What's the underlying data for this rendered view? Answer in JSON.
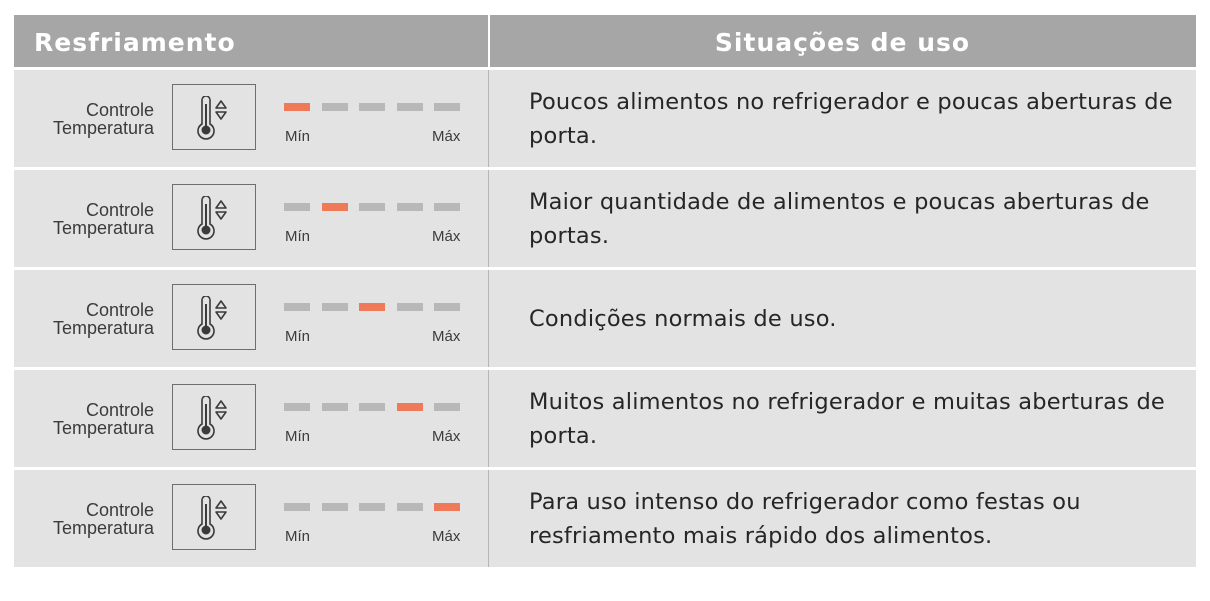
{
  "header": {
    "left": "Resfriamento",
    "right": "Situações de uso"
  },
  "colors": {
    "header_bg": "#a6a6a6",
    "row_bg": "#e3e3e4",
    "segment_active": "#ef7a5a",
    "segment_inactive": "#b8b8b8"
  },
  "icons": {
    "control": "thermometer-up-down-icon"
  },
  "rows": [
    {
      "label_line1": "Controle",
      "label_line2": "Temperatura",
      "min_label": "Mín",
      "max_label": "Máx",
      "level": 1,
      "level_count": 5,
      "description": "Poucos alimentos no refrigerador e poucas aberturas de porta."
    },
    {
      "label_line1": "Controle",
      "label_line2": "Temperatura",
      "min_label": "Mín",
      "max_label": "Máx",
      "level": 2,
      "level_count": 5,
      "description": "Maior quantidade de alimentos e poucas aberturas de portas."
    },
    {
      "label_line1": "Controle",
      "label_line2": "Temperatura",
      "min_label": "Mín",
      "max_label": "Máx",
      "level": 3,
      "level_count": 5,
      "description": "Condições normais de uso."
    },
    {
      "label_line1": "Controle",
      "label_line2": "Temperatura",
      "min_label": "Mín",
      "max_label": "Máx",
      "level": 4,
      "level_count": 5,
      "description": "Muitos alimentos no refrigerador e muitas aberturas de porta."
    },
    {
      "label_line1": "Controle",
      "label_line2": "Temperatura",
      "min_label": "Mín",
      "max_label": "Máx",
      "level": 5,
      "level_count": 5,
      "description": "Para uso intenso do refrigerador como festas ou resfriamento mais rápido dos alimentos."
    }
  ]
}
